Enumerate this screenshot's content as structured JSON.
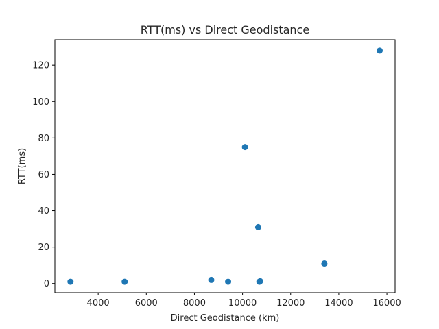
{
  "chart_data": {
    "type": "scatter",
    "title": "RTT(ms) vs Direct Geodistance",
    "xlabel": "Direct Geodistance (km)",
    "ylabel": "RTT(ms)",
    "xlim": [
      2200,
      16340
    ],
    "ylim": [
      -5,
      134
    ],
    "xticks": [
      4000,
      6000,
      8000,
      10000,
      12000,
      14000,
      16000
    ],
    "xtick_labels": [
      "4000",
      "6000",
      "8000",
      "10000",
      "12000",
      "14000",
      "16000"
    ],
    "yticks": [
      0,
      20,
      40,
      60,
      80,
      100,
      120
    ],
    "ytick_labels": [
      "0",
      "20",
      "40",
      "60",
      "80",
      "100",
      "120"
    ],
    "grid": false,
    "legend": false,
    "marker_color": "#1f77b4",
    "points": [
      {
        "x": 2850,
        "y": 1
      },
      {
        "x": 5100,
        "y": 1
      },
      {
        "x": 8700,
        "y": 2
      },
      {
        "x": 9400,
        "y": 1
      },
      {
        "x": 10100,
        "y": 75
      },
      {
        "x": 10650,
        "y": 31
      },
      {
        "x": 10700,
        "y": 1
      },
      {
        "x": 10730,
        "y": 1.3
      },
      {
        "x": 13400,
        "y": 11
      },
      {
        "x": 15700,
        "y": 128
      }
    ]
  }
}
